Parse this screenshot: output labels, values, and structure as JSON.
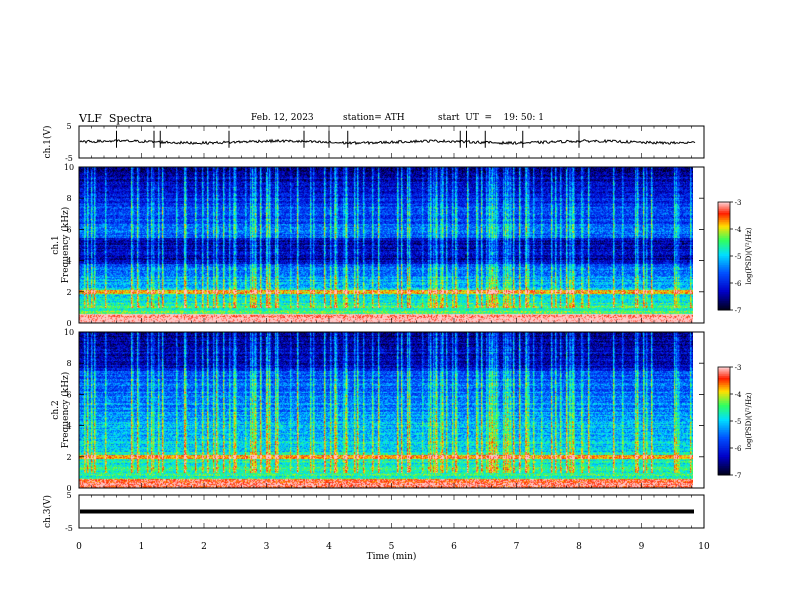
{
  "header": {
    "title": "VLF  Spectra",
    "date": "Feb. 12, 2023",
    "station": "station= ATH",
    "start_ut": "start  UT  =    19: 50: 1"
  },
  "chart_data": [
    {
      "type": "line",
      "ylabel": "ch.1(V)",
      "ylim": [
        -5,
        5
      ],
      "yticks": [
        "5",
        "-5"
      ],
      "xlim": [
        0,
        10
      ]
    },
    {
      "type": "heatmap",
      "ylabel_top": "ch.1",
      "ylabel": "Frequency  (kHz)",
      "ylim": [
        0,
        10
      ],
      "yticks": [
        "0",
        "2",
        "4",
        "6",
        "8",
        "10"
      ],
      "xlim": [
        0,
        10
      ],
      "colorbar": {
        "label": "log(PSD)(V²/Hz)",
        "range": [
          -7,
          -3
        ],
        "ticks": [
          "-3",
          "-4",
          "-5",
          "-6",
          "-7"
        ]
      }
    },
    {
      "type": "heatmap",
      "ylabel_top": "ch.2",
      "ylabel": "Frequency  (kHz)",
      "ylim": [
        0,
        10
      ],
      "yticks": [
        "0",
        "2",
        "4",
        "6",
        "8",
        "10"
      ],
      "xlim": [
        0,
        10
      ],
      "colorbar": {
        "label": "log(PSD)(V²/Hz)",
        "range": [
          -7,
          -3
        ],
        "ticks": [
          "-3",
          "-4",
          "-5",
          "-6",
          "-7"
        ]
      }
    },
    {
      "type": "line",
      "ylabel": "ch.3(V)",
      "ylim": [
        -5,
        5
      ],
      "yticks": [
        "5",
        "-5"
      ],
      "xlim": [
        0,
        10
      ],
      "xlabel": "Time  (min)",
      "xticks": [
        "0",
        "1",
        "2",
        "3",
        "4",
        "5",
        "6",
        "7",
        "8",
        "9",
        "10"
      ]
    }
  ],
  "colors": {
    "bg_dark": "#000010",
    "deep_blue": "#0000c8",
    "blue": "#0050ff",
    "cyan": "#00e0ff",
    "green": "#30ff60",
    "yellow": "#ffe000",
    "red": "#ff2000"
  }
}
